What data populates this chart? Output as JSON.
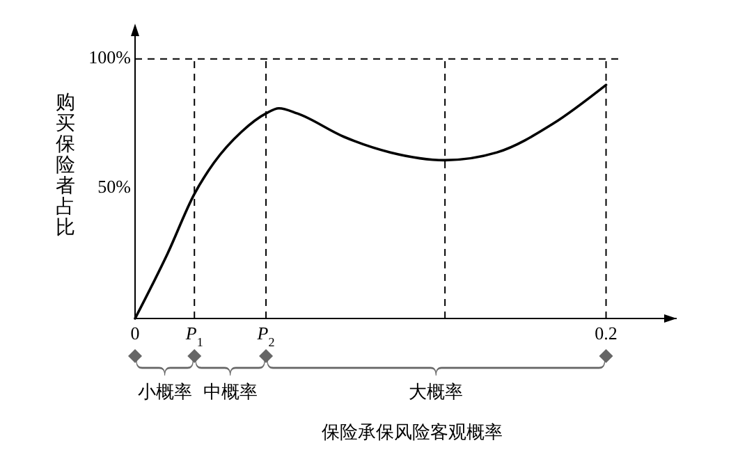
{
  "chart_data": {
    "type": "line",
    "xlabel": "保险承保风险客观概率",
    "ylabel": "购买保险者占比",
    "x": [
      0,
      0.0138,
      0.0252,
      0.0335,
      0.0453,
      0.0556,
      0.0611,
      0.0689,
      0.0887,
      0.1084,
      0.1316,
      0.1537,
      0.1774,
      0.2
    ],
    "series": [
      {
        "color": "#000000",
        "values": [
          0,
          25,
          48,
          60,
          72,
          79,
          81,
          79,
          70,
          64,
          61,
          64,
          75,
          90
        ]
      }
    ],
    "xlim": [
      0,
      0.23
    ],
    "ylim": [
      0,
      112
    ],
    "xticks": [
      0,
      {
        "value": 0.0252,
        "label": null
      },
      {
        "value": 0.0556,
        "label": null
      },
      0.2
    ],
    "yticks": [
      {
        "value": 50,
        "label": "50%"
      },
      {
        "value": 100,
        "label": "100%"
      }
    ],
    "ref_lines": [
      {
        "axis": "y",
        "value": 100,
        "line_style": "dashed"
      },
      {
        "axis": "x",
        "value": 0.0252,
        "line_style": "dashed",
        "label": "P$_{1}$"
      },
      {
        "axis": "x",
        "value": 0.0556,
        "line_style": "dashed",
        "label": "P$_{2}$"
      },
      {
        "axis": "x",
        "value": 0.1316,
        "line_style": "dashed"
      },
      {
        "axis": "x",
        "value": 0.2,
        "line_style": "dashed"
      }
    ],
    "annotations": [
      "小概率",
      "中概率",
      "大概率"
    ],
    "grid": false,
    "marker": "none",
    "line_style": "solid"
  }
}
